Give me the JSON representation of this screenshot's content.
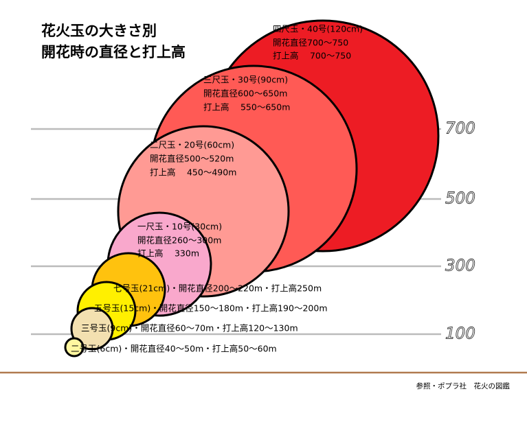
{
  "title": [
    "花火玉の大きさ別",
    "開花時の直径と打上高"
  ],
  "ticks": [
    "700",
    "500",
    "300",
    "100"
  ],
  "bubbles": [
    {
      "lines": [
        "四尺玉・40号(120cm)",
        "開花直径700～750",
        "打上高　 700～750"
      ]
    },
    {
      "lines": [
        "三尺玉・30号(90cm)",
        "開花直径600～650m",
        "打上高　 550～650m"
      ]
    },
    {
      "lines": [
        "二尺玉・20号(60cm)",
        "開花直径500～520m",
        "打上高　 450～490m"
      ]
    },
    {
      "lines": [
        "一尺玉・10号(30cm)",
        "開花直径260～300m",
        "打上高　 330m"
      ]
    },
    {
      "lines": [
        "七号玉(21cm)・開花直径200～220m・打上高250m"
      ]
    },
    {
      "lines": [
        "五号玉(15cm)・開花直径150～180m・打上高190～200m"
      ]
    },
    {
      "lines": [
        "三号玉(9cm)・開花直径60～70m・打上高120～130m"
      ]
    },
    {
      "lines": [
        "二号玉(6cm)・開花直径40～50m・打上高50～60m"
      ]
    }
  ],
  "source": "参照・ポプラ社　花火の図鑑"
}
